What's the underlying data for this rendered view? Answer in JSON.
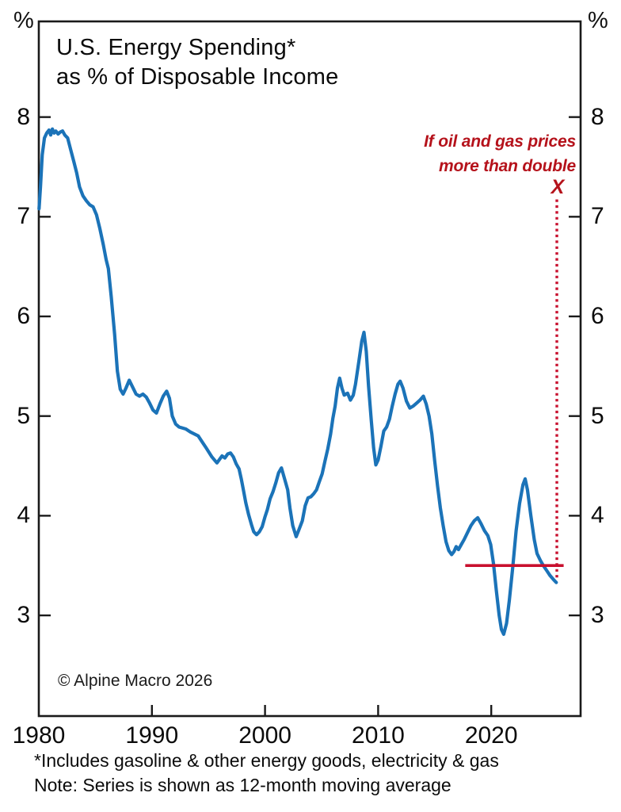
{
  "header": {
    "title_line1": "U.S. Energy Spending*",
    "title_line2": "as % of Disposable Income"
  },
  "axis": {
    "left_unit": "%",
    "right_unit": "%"
  },
  "annotations": {
    "note_line1": "If oil and gas prices",
    "note_line2": "more than double",
    "x_marker": "X"
  },
  "footer": {
    "copyright": "© Alpine Macro 2026",
    "footnote1": "*Includes gasoline & other energy goods, electricity & gas",
    "footnote2": "Note: Series is shown as 12-month moving average"
  },
  "colors": {
    "line_blue": "#1B73B8",
    "red_text": "#B5121B",
    "red_line": "#C8102E",
    "axis": "#1A1A1A"
  },
  "chart_data": {
    "type": "line",
    "title": "U.S. Energy Spending as % of Disposable Income",
    "xlabel": "",
    "ylabel": "%",
    "xlim": [
      1980,
      2027.9
    ],
    "ylim": [
      1.99,
      8.96
    ],
    "yticks": [
      8,
      7,
      6,
      5,
      4,
      3
    ],
    "xtick_labels": [
      1980,
      1990,
      2000,
      2010,
      2020
    ],
    "xtick_marks": [
      1990,
      2000,
      2010,
      2020
    ],
    "grid": false,
    "legend": "none",
    "series": [
      {
        "name": "U.S. energy spending as % of disposable income (12-month moving average)",
        "points": [
          [
            1980.02,
            7.08
          ],
          [
            1980.15,
            7.3
          ],
          [
            1980.3,
            7.62
          ],
          [
            1980.5,
            7.79
          ],
          [
            1980.7,
            7.84
          ],
          [
            1980.9,
            7.87
          ],
          [
            1981.05,
            7.82
          ],
          [
            1981.2,
            7.88
          ],
          [
            1981.35,
            7.84
          ],
          [
            1981.5,
            7.86
          ],
          [
            1981.7,
            7.83
          ],
          [
            1981.9,
            7.85
          ],
          [
            1982.1,
            7.86
          ],
          [
            1982.3,
            7.82
          ],
          [
            1982.55,
            7.79
          ],
          [
            1982.8,
            7.68
          ],
          [
            1983.1,
            7.55
          ],
          [
            1983.35,
            7.44
          ],
          [
            1983.6,
            7.3
          ],
          [
            1983.9,
            7.21
          ],
          [
            1984.2,
            7.16
          ],
          [
            1984.5,
            7.12
          ],
          [
            1984.8,
            7.1
          ],
          [
            1985.1,
            7.02
          ],
          [
            1985.4,
            6.88
          ],
          [
            1985.7,
            6.72
          ],
          [
            1985.95,
            6.57
          ],
          [
            1986.15,
            6.48
          ],
          [
            1986.4,
            6.2
          ],
          [
            1986.7,
            5.82
          ],
          [
            1986.95,
            5.45
          ],
          [
            1987.2,
            5.27
          ],
          [
            1987.45,
            5.22
          ],
          [
            1987.7,
            5.28
          ],
          [
            1988.0,
            5.36
          ],
          [
            1988.3,
            5.29
          ],
          [
            1988.6,
            5.22
          ],
          [
            1988.9,
            5.2
          ],
          [
            1989.2,
            5.22
          ],
          [
            1989.5,
            5.19
          ],
          [
            1989.8,
            5.13
          ],
          [
            1990.1,
            5.06
          ],
          [
            1990.4,
            5.03
          ],
          [
            1990.7,
            5.12
          ],
          [
            1991.0,
            5.2
          ],
          [
            1991.3,
            5.25
          ],
          [
            1991.55,
            5.18
          ],
          [
            1991.8,
            5.0
          ],
          [
            1992.1,
            4.92
          ],
          [
            1992.4,
            4.89
          ],
          [
            1992.7,
            4.88
          ],
          [
            1993.0,
            4.87
          ],
          [
            1993.4,
            4.84
          ],
          [
            1994.1,
            4.8
          ],
          [
            1994.8,
            4.68
          ],
          [
            1995.3,
            4.59
          ],
          [
            1995.75,
            4.53
          ],
          [
            1996.2,
            4.6
          ],
          [
            1996.45,
            4.58
          ],
          [
            1996.7,
            4.62
          ],
          [
            1996.95,
            4.63
          ],
          [
            1997.2,
            4.59
          ],
          [
            1997.45,
            4.52
          ],
          [
            1997.7,
            4.47
          ],
          [
            1997.9,
            4.37
          ],
          [
            1998.1,
            4.25
          ],
          [
            1998.3,
            4.13
          ],
          [
            1998.55,
            4.01
          ],
          [
            1998.8,
            3.91
          ],
          [
            1999.0,
            3.84
          ],
          [
            1999.25,
            3.81
          ],
          [
            1999.5,
            3.84
          ],
          [
            1999.75,
            3.89
          ],
          [
            2000.0,
            3.99
          ],
          [
            2000.2,
            4.06
          ],
          [
            2000.45,
            4.17
          ],
          [
            2000.7,
            4.24
          ],
          [
            2000.95,
            4.33
          ],
          [
            2001.2,
            4.43
          ],
          [
            2001.45,
            4.48
          ],
          [
            2001.7,
            4.38
          ],
          [
            2002.0,
            4.26
          ],
          [
            2002.2,
            4.08
          ],
          [
            2002.45,
            3.9
          ],
          [
            2002.75,
            3.79
          ],
          [
            2003.0,
            3.86
          ],
          [
            2003.3,
            3.95
          ],
          [
            2003.55,
            4.1
          ],
          [
            2003.8,
            4.18
          ],
          [
            2004.05,
            4.19
          ],
          [
            2004.3,
            4.22
          ],
          [
            2004.55,
            4.26
          ],
          [
            2004.8,
            4.34
          ],
          [
            2005.05,
            4.42
          ],
          [
            2005.3,
            4.55
          ],
          [
            2005.55,
            4.67
          ],
          [
            2005.8,
            4.82
          ],
          [
            2006.0,
            4.98
          ],
          [
            2006.2,
            5.1
          ],
          [
            2006.4,
            5.28
          ],
          [
            2006.6,
            5.38
          ],
          [
            2006.8,
            5.28
          ],
          [
            2007.0,
            5.21
          ],
          [
            2007.3,
            5.23
          ],
          [
            2007.55,
            5.16
          ],
          [
            2007.8,
            5.21
          ],
          [
            2008.0,
            5.32
          ],
          [
            2008.3,
            5.55
          ],
          [
            2008.55,
            5.75
          ],
          [
            2008.75,
            5.84
          ],
          [
            2008.95,
            5.65
          ],
          [
            2009.15,
            5.3
          ],
          [
            2009.4,
            4.95
          ],
          [
            2009.6,
            4.68
          ],
          [
            2009.8,
            4.51
          ],
          [
            2010.0,
            4.56
          ],
          [
            2010.25,
            4.7
          ],
          [
            2010.5,
            4.85
          ],
          [
            2010.75,
            4.89
          ],
          [
            2011.0,
            4.97
          ],
          [
            2011.25,
            5.1
          ],
          [
            2011.5,
            5.22
          ],
          [
            2011.75,
            5.32
          ],
          [
            2011.95,
            5.35
          ],
          [
            2012.2,
            5.28
          ],
          [
            2012.5,
            5.15
          ],
          [
            2012.8,
            5.08
          ],
          [
            2013.1,
            5.1
          ],
          [
            2013.4,
            5.13
          ],
          [
            2013.7,
            5.16
          ],
          [
            2014.0,
            5.2
          ],
          [
            2014.25,
            5.12
          ],
          [
            2014.5,
            5.0
          ],
          [
            2014.75,
            4.82
          ],
          [
            2015.0,
            4.55
          ],
          [
            2015.25,
            4.3
          ],
          [
            2015.5,
            4.08
          ],
          [
            2015.75,
            3.9
          ],
          [
            2016.0,
            3.74
          ],
          [
            2016.25,
            3.65
          ],
          [
            2016.5,
            3.61
          ],
          [
            2016.7,
            3.64
          ],
          [
            2016.9,
            3.69
          ],
          [
            2017.1,
            3.66
          ],
          [
            2017.35,
            3.71
          ],
          [
            2017.6,
            3.76
          ],
          [
            2017.9,
            3.83
          ],
          [
            2018.2,
            3.9
          ],
          [
            2018.5,
            3.95
          ],
          [
            2018.8,
            3.98
          ],
          [
            2019.1,
            3.92
          ],
          [
            2019.4,
            3.85
          ],
          [
            2019.7,
            3.8
          ],
          [
            2019.95,
            3.71
          ],
          [
            2020.2,
            3.52
          ],
          [
            2020.45,
            3.25
          ],
          [
            2020.7,
            3.0
          ],
          [
            2020.9,
            2.86
          ],
          [
            2021.1,
            2.81
          ],
          [
            2021.35,
            2.92
          ],
          [
            2021.6,
            3.15
          ],
          [
            2021.9,
            3.48
          ],
          [
            2022.2,
            3.85
          ],
          [
            2022.5,
            4.12
          ],
          [
            2022.8,
            4.31
          ],
          [
            2023.0,
            4.37
          ],
          [
            2023.2,
            4.26
          ],
          [
            2023.5,
            4.0
          ],
          [
            2023.8,
            3.76
          ],
          [
            2024.05,
            3.62
          ],
          [
            2024.35,
            3.55
          ],
          [
            2024.6,
            3.5
          ],
          [
            2024.9,
            3.45
          ],
          [
            2025.2,
            3.4
          ],
          [
            2025.5,
            3.36
          ],
          [
            2025.75,
            3.33
          ]
        ]
      }
    ],
    "baseline": {
      "value": 3.5,
      "year_start": 2017.7,
      "year_end": 2026.4
    },
    "scenario_marker": {
      "year": 2025.8,
      "value_bottom": 3.38,
      "value_top": 7.2
    }
  }
}
